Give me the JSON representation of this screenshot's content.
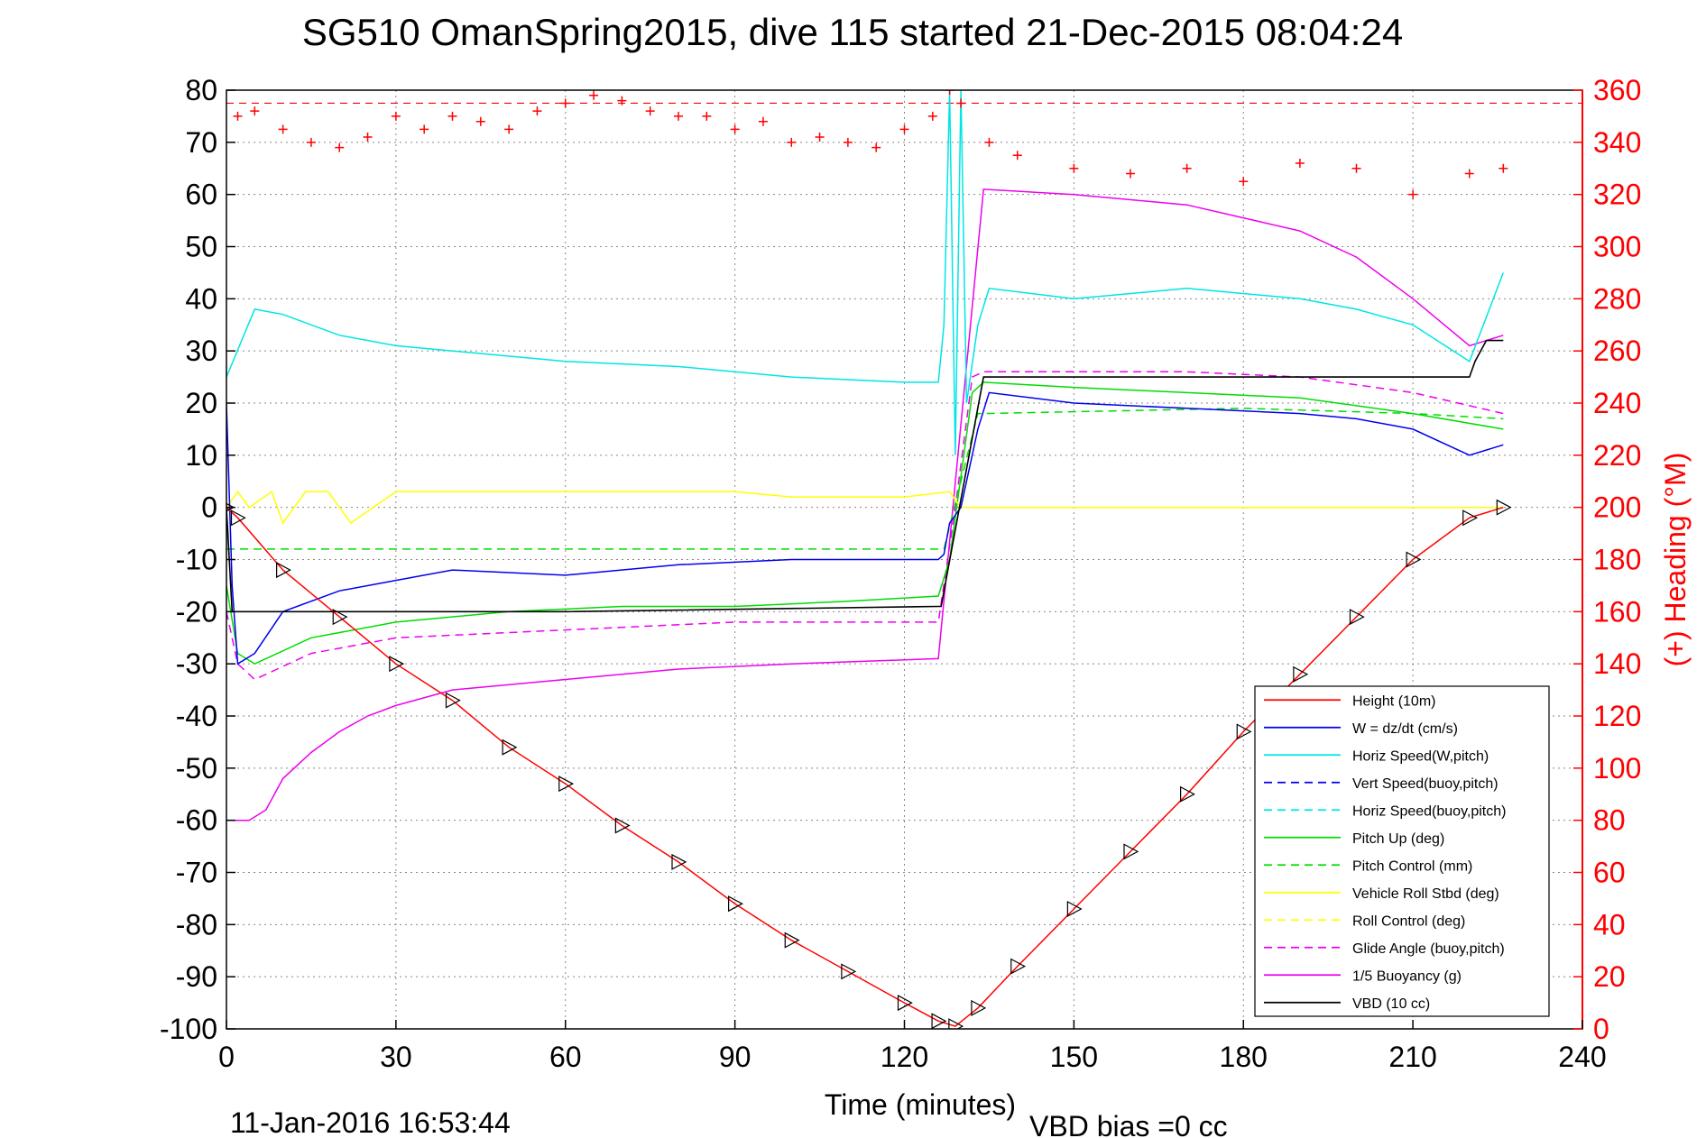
{
  "title": "SG510 OmanSpring2015, dive 115 started 21-Dec-2015 08:04:24",
  "footer": {
    "timestamp": "11-Jan-2016 16:53:44",
    "vbd_bias": "VBD bias =0 cc"
  },
  "colors": {
    "height": "#ff0000",
    "w": "#0000ee",
    "horiz_speed": "#00e5e5",
    "pitch": "#00dd00",
    "roll": "#ffff00",
    "glide": "#ee00ee",
    "vbd": "#000000",
    "heading": "#ff0000"
  },
  "chart_data": {
    "type": "line",
    "xlabel": "Time (minutes)",
    "ylabel_right": "(+) Heading (°M)",
    "xlim": [
      0,
      240
    ],
    "ylim": [
      -100,
      80
    ],
    "ylim_right": [
      0,
      360
    ],
    "xticks": [
      0,
      30,
      60,
      90,
      120,
      150,
      180,
      210,
      240
    ],
    "yticks": [
      -100,
      -90,
      -80,
      -70,
      -60,
      -50,
      -40,
      -30,
      -20,
      -10,
      0,
      10,
      20,
      30,
      40,
      50,
      60,
      70,
      80
    ],
    "yticks_right": [
      0,
      20,
      40,
      60,
      80,
      100,
      120,
      140,
      160,
      180,
      200,
      220,
      240,
      260,
      280,
      300,
      320,
      340,
      360
    ],
    "grid": true,
    "legend_position": "bottom-right",
    "legend": [
      {
        "label": "Height (10m)",
        "color": "#ff0000",
        "dash": "solid"
      },
      {
        "label": "W = dz/dt (cm/s)",
        "color": "#0000ee",
        "dash": "solid"
      },
      {
        "label": "Horiz Speed(W,pitch)",
        "color": "#00e5e5",
        "dash": "solid"
      },
      {
        "label": "Vert Speed(buoy,pitch)",
        "color": "#0000ee",
        "dash": "dashed"
      },
      {
        "label": "Horiz Speed(buoy,pitch)",
        "color": "#00e5e5",
        "dash": "dashed"
      },
      {
        "label": "Pitch Up (deg)",
        "color": "#00dd00",
        "dash": "solid"
      },
      {
        "label": "Pitch Control (mm)",
        "color": "#00dd00",
        "dash": "dashed"
      },
      {
        "label": "Vehicle Roll Stbd (deg)",
        "color": "#ffff00",
        "dash": "solid"
      },
      {
        "label": "Roll Control (deg)",
        "color": "#ffff00",
        "dash": "dashed"
      },
      {
        "label": "Glide Angle (buoy,pitch)",
        "color": "#ee00ee",
        "dash": "dashed"
      },
      {
        "label": "1/5 Buoyancy (g)",
        "color": "#ee00ee",
        "dash": "solid"
      },
      {
        "label": "VBD (10 cc)",
        "color": "#000000",
        "dash": "solid"
      }
    ],
    "series": [
      {
        "name": "Height (10m)",
        "x": [
          0,
          2,
          10,
          20,
          30,
          40,
          50,
          60,
          70,
          80,
          90,
          100,
          110,
          120,
          126,
          129,
          133,
          140,
          150,
          160,
          170,
          180,
          190,
          200,
          210,
          220,
          226
        ],
        "y": [
          0,
          -2,
          -12,
          -21,
          -30,
          -37,
          -46,
          -53,
          -61,
          -68,
          -76,
          -83,
          -89,
          -95,
          -98.5,
          -99.5,
          -96,
          -88,
          -77,
          -66,
          -55,
          -43,
          -32,
          -21,
          -10,
          -2,
          0
        ]
      },
      {
        "name": "W = dz/dt (cm/s)",
        "x": [
          0,
          1,
          2,
          5,
          10,
          20,
          30,
          40,
          60,
          80,
          100,
          110,
          120,
          126,
          127,
          128,
          130,
          133,
          135,
          150,
          170,
          190,
          200,
          210,
          220,
          226
        ],
        "y": [
          20,
          -15,
          -30,
          -28,
          -20,
          -16,
          -14,
          -12,
          -13,
          -11,
          -10,
          -10,
          -10,
          -10,
          -9,
          -3,
          0,
          15,
          22,
          20,
          19,
          18,
          17,
          15,
          10,
          12
        ]
      },
      {
        "name": "Horiz Speed(W,pitch)",
        "x": [
          0,
          5,
          10,
          20,
          30,
          40,
          60,
          80,
          100,
          120,
          126,
          127,
          128,
          129,
          130,
          131,
          133,
          135,
          150,
          170,
          190,
          200,
          210,
          220,
          226
        ],
        "y": [
          25,
          38,
          37,
          33,
          31,
          30,
          28,
          27,
          25,
          24,
          24,
          35,
          80,
          10,
          80,
          20,
          35,
          42,
          40,
          42,
          40,
          38,
          35,
          28,
          45
        ]
      },
      {
        "name": "Pitch Up (deg)",
        "x": [
          0,
          2,
          5,
          15,
          30,
          50,
          70,
          90,
          110,
          126,
          128,
          132,
          134,
          150,
          170,
          190,
          210,
          226
        ],
        "y": [
          -15,
          -28,
          -30,
          -25,
          -22,
          -20,
          -19,
          -19,
          -18,
          -17,
          -10,
          22,
          24,
          23,
          22,
          21,
          18,
          15
        ]
      },
      {
        "name": "Pitch Control (mm)",
        "x": [
          0,
          2,
          30,
          60,
          90,
          126,
          127,
          133,
          134,
          180,
          210,
          226
        ],
        "y": [
          -8,
          -8,
          -8,
          -8,
          -8,
          -8,
          -8,
          18,
          18,
          19,
          18,
          17
        ]
      },
      {
        "name": "Vehicle Roll Stbd (deg)",
        "x": [
          0,
          2,
          4,
          8,
          10,
          14,
          18,
          22,
          30,
          40,
          60,
          90,
          100,
          120,
          128,
          130,
          140,
          160,
          190,
          210,
          226
        ],
        "y": [
          0,
          3,
          0,
          3,
          -3,
          3,
          3,
          -3,
          3,
          3,
          3,
          3,
          2,
          2,
          3,
          0,
          0,
          0,
          0,
          0,
          0
        ]
      },
      {
        "name": "Glide Angle (buoy,pitch)",
        "x": [
          0,
          2,
          5,
          15,
          30,
          50,
          70,
          90,
          110,
          126,
          129,
          132,
          134,
          150,
          170,
          190,
          210,
          226
        ],
        "y": [
          -20,
          -30,
          -33,
          -28,
          -25,
          -24,
          -23,
          -22,
          -22,
          -22,
          0,
          25,
          26,
          26,
          26,
          25,
          22,
          18
        ]
      },
      {
        "name": "1/5 Buoyancy (g)",
        "x": [
          0,
          2,
          4,
          7,
          10,
          15,
          20,
          25,
          30,
          40,
          60,
          80,
          100,
          126,
          134,
          150,
          170,
          190,
          200,
          210,
          220,
          226
        ],
        "y": [
          -60,
          -60,
          -60,
          -58,
          -52,
          -47,
          -43,
          -40,
          -38,
          -35,
          -33,
          -31,
          -30,
          -29,
          61,
          60,
          58,
          53,
          48,
          40,
          31,
          33
        ]
      },
      {
        "name": "VBD (10 cc)",
        "x": [
          0,
          1,
          2,
          60,
          126,
          126.5,
          134,
          220,
          221,
          223,
          226
        ],
        "y": [
          0,
          -20,
          -20,
          -20,
          -19,
          -19,
          25,
          25,
          28,
          32,
          32
        ]
      },
      {
        "name": "Heading (°M)",
        "axis": "right",
        "x": [
          2,
          5,
          10,
          15,
          20,
          25,
          30,
          35,
          40,
          45,
          50,
          55,
          60,
          65,
          70,
          75,
          80,
          85,
          90,
          95,
          100,
          105,
          110,
          115,
          120,
          125,
          128,
          130,
          135,
          140,
          150,
          160,
          170,
          180,
          190,
          200,
          210,
          220,
          226
        ],
        "y": [
          350,
          352,
          345,
          340,
          338,
          342,
          350,
          345,
          350,
          348,
          345,
          352,
          355,
          358,
          356,
          352,
          350,
          350,
          345,
          348,
          340,
          342,
          340,
          338,
          345,
          350,
          360,
          355,
          340,
          335,
          330,
          328,
          330,
          325,
          332,
          330,
          320,
          328,
          330
        ]
      }
    ]
  }
}
